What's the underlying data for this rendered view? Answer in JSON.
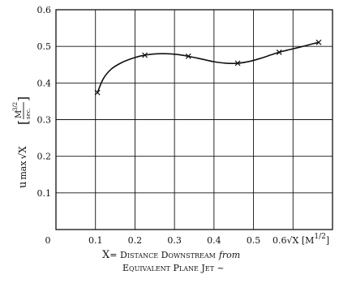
{
  "chart_data": {
    "type": "line",
    "title": "",
    "xlabel_line1_lead": "X",
    "xlabel_line1_rest": "= Distance Downstream",
    "xlabel_line1_italic": "from",
    "xlabel_line2": "Equivalent Plane Jet ~",
    "ylabel_main": "u",
    "ylabel_sub": "max",
    "ylabel_root": "√X",
    "ylabel_unit_num": "M",
    "ylabel_unit_exp": "3/2",
    "ylabel_unit_den": "sec.",
    "x_tick_end_label": "0.6√X [M",
    "x_tick_end_exp": "1/2",
    "x_tick_end_close": "]",
    "xlim": [
      0,
      0.7
    ],
    "ylim": [
      0,
      0.6
    ],
    "grid": true,
    "x_ticks": [
      {
        "v": 0.0,
        "label": "0"
      },
      {
        "v": 0.1,
        "label": "0.1"
      },
      {
        "v": 0.2,
        "label": "0.2"
      },
      {
        "v": 0.3,
        "label": "0.3"
      },
      {
        "v": 0.4,
        "label": "0.4"
      },
      {
        "v": 0.5,
        "label": "0.5"
      }
    ],
    "y_ticks": [
      {
        "v": 0.1,
        "label": "0.1"
      },
      {
        "v": 0.2,
        "label": "0.2"
      },
      {
        "v": 0.3,
        "label": "0.3"
      },
      {
        "v": 0.4,
        "label": "0.4"
      },
      {
        "v": 0.5,
        "label": "0.5"
      },
      {
        "v": 0.6,
        "label": "0.6"
      }
    ],
    "series": [
      {
        "marker": "x",
        "x": [
          0.105,
          0.225,
          0.335,
          0.46,
          0.565,
          0.665
        ],
        "y": [
          0.374,
          0.476,
          0.473,
          0.454,
          0.484,
          0.511
        ]
      }
    ],
    "curve_x": [
      0.105,
      0.12,
      0.14,
      0.165,
      0.19,
      0.215,
      0.245,
      0.275,
      0.305,
      0.335,
      0.37,
      0.4,
      0.43,
      0.46,
      0.49,
      0.52,
      0.545,
      0.565,
      0.595,
      0.625,
      0.65,
      0.665
    ],
    "curve_y": [
      0.374,
      0.412,
      0.438,
      0.455,
      0.466,
      0.474,
      0.479,
      0.48,
      0.478,
      0.473,
      0.465,
      0.458,
      0.454,
      0.454,
      0.459,
      0.468,
      0.477,
      0.484,
      0.492,
      0.5,
      0.507,
      0.511
    ]
  }
}
